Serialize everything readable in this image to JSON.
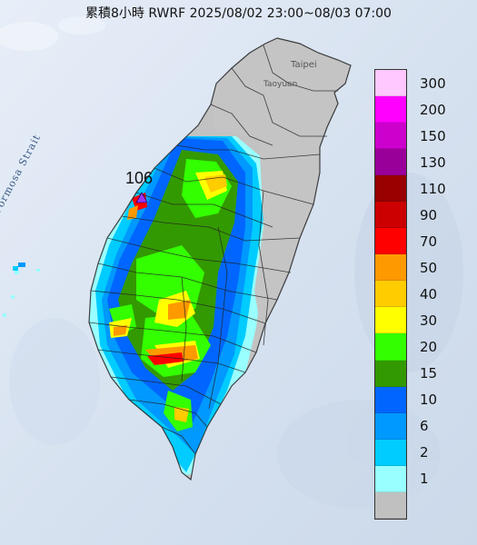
{
  "title": "累積8小時 RWRF 2025/08/02 23:00~08/03 07:00",
  "labels": {
    "strait": "Formosa Strait",
    "taipei": "Taipei",
    "taoyuan": "Taoyuan",
    "max_value": "106"
  },
  "legend": [
    {
      "label": "300",
      "color": "#ffc8ff"
    },
    {
      "label": "200",
      "color": "#ff00ff"
    },
    {
      "label": "150",
      "color": "#cc00cc"
    },
    {
      "label": "130",
      "color": "#990099"
    },
    {
      "label": "110",
      "color": "#990000"
    },
    {
      "label": "90",
      "color": "#cc0000"
    },
    {
      "label": "70",
      "color": "#ff0000"
    },
    {
      "label": "50",
      "color": "#ff9900"
    },
    {
      "label": "40",
      "color": "#ffcc00"
    },
    {
      "label": "30",
      "color": "#ffff00"
    },
    {
      "label": "20",
      "color": "#33ff00"
    },
    {
      "label": "15",
      "color": "#339900"
    },
    {
      "label": "10",
      "color": "#0066ff"
    },
    {
      "label": "6",
      "color": "#0099ff"
    },
    {
      "label": "2",
      "color": "#00ccff"
    },
    {
      "label": "1",
      "color": "#99ffff"
    },
    {
      "label": "",
      "color": "#c0c0c0"
    }
  ]
}
